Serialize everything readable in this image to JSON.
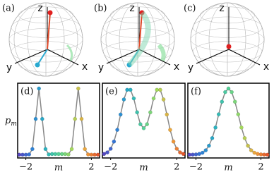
{
  "spheres": [
    {
      "label": "(a)",
      "z": "z",
      "x": "x",
      "y": "y"
    },
    {
      "label": "(b)",
      "z": "z",
      "x": "x",
      "y": "y"
    },
    {
      "label": "(c)",
      "z": "z",
      "x": "x",
      "y": "y"
    }
  ],
  "chart_data": [
    {
      "type": "line",
      "panel": "(d)",
      "xlabel": "m",
      "ylabel": {
        "base": "p",
        "sub": "m"
      },
      "x": [
        -2.4,
        -2.2,
        -2.0,
        -1.8,
        -1.6,
        -1.4,
        -1.2,
        -1.0,
        -0.8,
        -0.6,
        -0.4,
        -0.2,
        0,
        0.2,
        0.4,
        0.6,
        0.8,
        1.0,
        1.2,
        1.4,
        1.6,
        1.8,
        2.0,
        2.2,
        2.4
      ],
      "values": [
        0,
        0,
        0,
        0.004,
        0.085,
        0.54,
        1,
        0.54,
        0.085,
        0.004,
        0.01,
        0.01,
        0.01,
        0.01,
        0.01,
        0.004,
        0.085,
        0.54,
        1,
        0.54,
        0.085,
        0.004,
        0,
        0,
        0
      ],
      "xlim": [
        -2.5,
        2.5
      ],
      "ylim": [
        -0.05,
        1.08
      ],
      "xticks": [
        {
          "value": -2,
          "label": "−2"
        },
        2
      ],
      "line_color": "#888888",
      "colormap": [
        "#5b3fbf",
        "#2f7fd8",
        "#29b1c2",
        "#56d197",
        "#a7d95a",
        "#f0a33c",
        "#e04a2a"
      ]
    },
    {
      "type": "line",
      "panel": "(e)",
      "xlabel": "m",
      "x": [
        -2.4,
        -2.2,
        -2.0,
        -1.8,
        -1.6,
        -1.4,
        -1.2,
        -1.0,
        -0.8,
        -0.6,
        -0.4,
        -0.2,
        0,
        0.2,
        0.4,
        0.6,
        0.8,
        1.0,
        1.2,
        1.4,
        1.6,
        1.8,
        2.0,
        2.2,
        2.4
      ],
      "values": [
        0.011,
        0.034,
        0.089,
        0.198,
        0.375,
        0.607,
        0.835,
        0.98,
        0.98,
        0.85,
        0.64,
        0.46,
        0.4,
        0.46,
        0.64,
        0.85,
        0.98,
        0.98,
        0.835,
        0.607,
        0.375,
        0.198,
        0.089,
        0.034,
        0.011
      ],
      "xlim": [
        -2.5,
        2.5
      ],
      "ylim": [
        -0.05,
        1.08
      ],
      "xticks": [
        {
          "value": -2,
          "label": "−2"
        },
        2
      ],
      "line_color": "#888888",
      "colormap": [
        "#5b3fbf",
        "#2f7fd8",
        "#29b1c2",
        "#56d197",
        "#a7d95a",
        "#f0a33c",
        "#e04a2a"
      ]
    },
    {
      "type": "line",
      "panel": "(f)",
      "xlabel": "m",
      "x": [
        -2.4,
        -2.2,
        -2.0,
        -1.8,
        -1.6,
        -1.4,
        -1.2,
        -1.0,
        -0.8,
        -0.6,
        -0.4,
        -0.2,
        0,
        0.2,
        0.4,
        0.6,
        0.8,
        1.0,
        1.2,
        1.4,
        1.6,
        1.8,
        2.0,
        2.2,
        2.4
      ],
      "values": [
        0,
        0.001,
        0.004,
        0.011,
        0.029,
        0.066,
        0.135,
        0.25,
        0.41,
        0.61,
        0.8,
        0.946,
        1,
        0.946,
        0.8,
        0.61,
        0.41,
        0.25,
        0.135,
        0.066,
        0.029,
        0.011,
        0.004,
        0.001,
        0
      ],
      "xlim": [
        -2.5,
        2.5
      ],
      "ylim": [
        -0.05,
        1.08
      ],
      "xticks": [
        {
          "value": -2,
          "label": "−2"
        },
        2
      ],
      "line_color": "#888888",
      "colormap": [
        "#5b3fbf",
        "#2f7fd8",
        "#29b1c2",
        "#56d197",
        "#a7d95a",
        "#f0a33c",
        "#e04a2a"
      ]
    }
  ]
}
